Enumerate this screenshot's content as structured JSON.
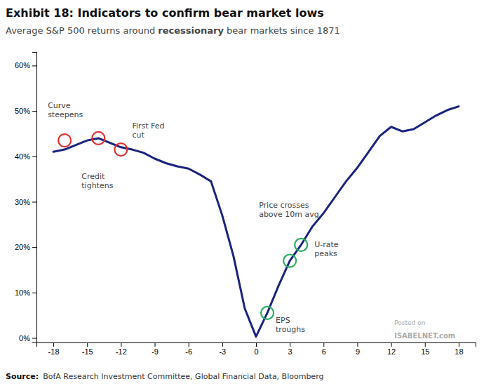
{
  "chart_data": {
    "type": "line",
    "title": "Exhibit 18: Indicators to confirm bear market lows",
    "subtitle": [
      "Average S&P 500 returns around ",
      "recessionary",
      " bear markets since 1871"
    ],
    "x": [
      -18,
      -17,
      -16,
      -15,
      -14,
      -13,
      -12,
      -11,
      -10,
      -9,
      -8,
      -7,
      -6,
      -5,
      -4,
      -3,
      -2,
      -1,
      0,
      1,
      2,
      3,
      4,
      5,
      6,
      7,
      8,
      9,
      10,
      11,
      12,
      13,
      14,
      15,
      16,
      17,
      18
    ],
    "values": [
      0.41,
      0.415,
      0.425,
      0.435,
      0.44,
      0.43,
      0.42,
      0.415,
      0.408,
      0.395,
      0.385,
      0.378,
      0.373,
      0.36,
      0.345,
      0.27,
      0.18,
      0.065,
      0.003,
      0.055,
      0.115,
      0.17,
      0.205,
      0.245,
      0.275,
      0.31,
      0.345,
      0.375,
      0.41,
      0.445,
      0.465,
      0.455,
      0.46,
      0.475,
      0.49,
      0.502,
      0.51
    ],
    "color": "#1a237e",
    "xlim": [
      -19.5,
      19.5
    ],
    "ylim": [
      -0.01,
      0.63
    ],
    "xticks": [
      -18,
      -15,
      -12,
      -9,
      -6,
      -3,
      0,
      3,
      6,
      9,
      12,
      15,
      18
    ],
    "yticks": [
      {
        "value": 0.0,
        "label": "0%"
      },
      {
        "value": 0.1,
        "label": "10%"
      },
      {
        "value": 0.2,
        "label": "20%"
      },
      {
        "value": 0.3,
        "label": "30%"
      },
      {
        "value": 0.4,
        "label": "40%"
      },
      {
        "value": 0.5,
        "label": "50%"
      },
      {
        "value": 0.6,
        "label": "60%"
      }
    ],
    "grid": false,
    "annotations": [
      {
        "x": -17,
        "y": 0.435,
        "label": "Curve\nsteepens",
        "color": "#e03030"
      },
      {
        "x": -14,
        "y": 0.44,
        "label": "Credit\ntightens",
        "color": "#e03030"
      },
      {
        "x": -12,
        "y": 0.415,
        "label": "First Fed\ncut",
        "color": "#e03030"
      },
      {
        "x": 1,
        "y": 0.055,
        "label": "EPS\ntroughs",
        "color": "#27ae60"
      },
      {
        "x": 3,
        "y": 0.17,
        "label": "Price crosses\nabove 10m avg",
        "color": "#27ae60"
      },
      {
        "x": 4,
        "y": 0.205,
        "label": "U-rate\npeaks",
        "color": "#27ae60"
      }
    ],
    "watermark": [
      "Posted on",
      "ISABELNET.com"
    ],
    "source": [
      "Source:",
      "BofA Research Investment Committee, Global Financial Data, Bloomberg"
    ]
  }
}
